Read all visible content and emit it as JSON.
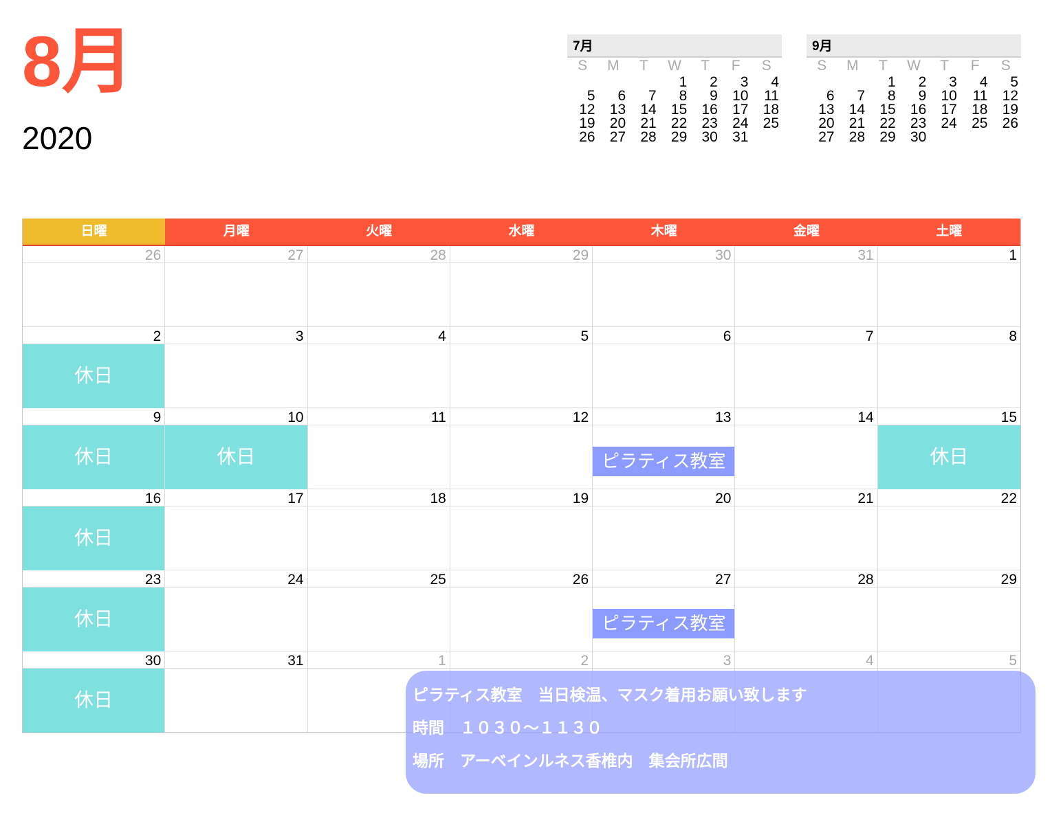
{
  "header": {
    "month": "8月",
    "year": "2020"
  },
  "mini_calendars": [
    {
      "title": "7月",
      "dow": [
        "S",
        "M",
        "T",
        "W",
        "T",
        "F",
        "S"
      ],
      "days": [
        "",
        "",
        "",
        1,
        2,
        3,
        4,
        5,
        6,
        7,
        8,
        9,
        10,
        11,
        12,
        13,
        14,
        15,
        16,
        17,
        18,
        19,
        20,
        21,
        22,
        23,
        24,
        25,
        26,
        27,
        28,
        29,
        30,
        31
      ]
    },
    {
      "title": "9月",
      "dow": [
        "S",
        "M",
        "T",
        "W",
        "T",
        "F",
        "S"
      ],
      "days": [
        "",
        "",
        1,
        2,
        3,
        4,
        5,
        6,
        7,
        8,
        9,
        10,
        11,
        12,
        13,
        14,
        15,
        16,
        17,
        18,
        19,
        20,
        21,
        22,
        23,
        24,
        25,
        26,
        27,
        28,
        29,
        30
      ]
    }
  ],
  "weekdays": [
    "日曜",
    "月曜",
    "火曜",
    "水曜",
    "木曜",
    "金曜",
    "土曜"
  ],
  "colors": {
    "accent": "#fd5539",
    "sunday": "#efba2b",
    "holiday": "#7fe0e0",
    "event": "#8c9bff",
    "note": "#b0baff"
  },
  "weeks": [
    [
      {
        "d": "26",
        "m": true
      },
      {
        "d": "27",
        "m": true
      },
      {
        "d": "28",
        "m": true
      },
      {
        "d": "29",
        "m": true
      },
      {
        "d": "30",
        "m": true
      },
      {
        "d": "31",
        "m": true
      },
      {
        "d": "1"
      }
    ],
    [
      {
        "d": "2",
        "h": "休日"
      },
      {
        "d": "3"
      },
      {
        "d": "4"
      },
      {
        "d": "5"
      },
      {
        "d": "6"
      },
      {
        "d": "7"
      },
      {
        "d": "8"
      }
    ],
    [
      {
        "d": "9",
        "h": "休日"
      },
      {
        "d": "10",
        "h": "休日"
      },
      {
        "d": "11"
      },
      {
        "d": "12"
      },
      {
        "d": "13",
        "e": "ピラティス教室"
      },
      {
        "d": "14"
      },
      {
        "d": "15",
        "h": "休日"
      }
    ],
    [
      {
        "d": "16",
        "h": "休日"
      },
      {
        "d": "17"
      },
      {
        "d": "18"
      },
      {
        "d": "19"
      },
      {
        "d": "20"
      },
      {
        "d": "21"
      },
      {
        "d": "22"
      }
    ],
    [
      {
        "d": "23",
        "h": "休日"
      },
      {
        "d": "24"
      },
      {
        "d": "25"
      },
      {
        "d": "26"
      },
      {
        "d": "27",
        "e": "ピラティス教室"
      },
      {
        "d": "28"
      },
      {
        "d": "29"
      }
    ],
    [
      {
        "d": "30",
        "h": "休日"
      },
      {
        "d": "31"
      },
      {
        "d": "1",
        "m": true
      },
      {
        "d": "2",
        "m": true
      },
      {
        "d": "3",
        "m": true
      },
      {
        "d": "4",
        "m": true
      },
      {
        "d": "5",
        "m": true
      }
    ]
  ],
  "note": {
    "lines": [
      "ピラティス教室　当日検温、マスク着用お願い致します",
      "時間　１０３０〜１１３０",
      "場所　アーベインルネス香椎内　集会所広間"
    ]
  }
}
